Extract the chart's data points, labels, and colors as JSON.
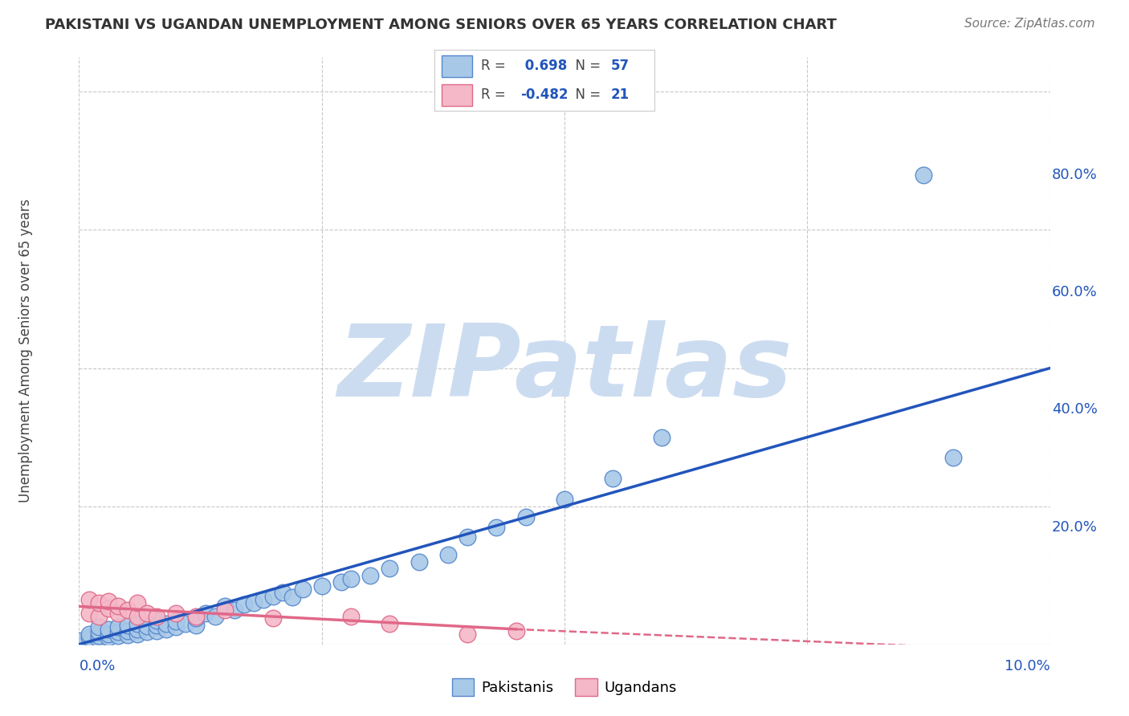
{
  "title": "PAKISTANI VS UGANDAN UNEMPLOYMENT AMONG SENIORS OVER 65 YEARS CORRELATION CHART",
  "source": "Source: ZipAtlas.com",
  "ylabel": "Unemployment Among Seniors over 65 years",
  "xlim": [
    0.0,
    0.1
  ],
  "ylim": [
    0.0,
    0.85
  ],
  "pakistani_color": "#A8C8E8",
  "pakistani_edge_color": "#5588CC",
  "ugandan_color": "#F4B8C8",
  "ugandan_edge_color": "#E06888",
  "trendline_pakistani_color": "#2255BB",
  "trendline_ugandan_color": "#E06888",
  "R_pakistani": 0.698,
  "N_pakistani": 57,
  "R_ugandan": -0.482,
  "N_ugandan": 21,
  "pakistani_x": [
    0.0,
    0.001,
    0.001,
    0.002,
    0.002,
    0.002,
    0.002,
    0.003,
    0.003,
    0.003,
    0.004,
    0.004,
    0.004,
    0.005,
    0.005,
    0.005,
    0.006,
    0.006,
    0.006,
    0.007,
    0.007,
    0.008,
    0.008,
    0.008,
    0.009,
    0.009,
    0.01,
    0.01,
    0.011,
    0.012,
    0.012,
    0.013,
    0.014,
    0.015,
    0.016,
    0.017,
    0.018,
    0.019,
    0.02,
    0.021,
    0.022,
    0.023,
    0.025,
    0.027,
    0.028,
    0.03,
    0.032,
    0.035,
    0.038,
    0.04,
    0.043,
    0.046,
    0.05,
    0.055,
    0.06,
    0.087,
    0.09
  ],
  "pakistani_y": [
    0.005,
    0.01,
    0.015,
    0.008,
    0.012,
    0.018,
    0.025,
    0.01,
    0.015,
    0.022,
    0.012,
    0.018,
    0.025,
    0.014,
    0.02,
    0.028,
    0.015,
    0.022,
    0.03,
    0.018,
    0.026,
    0.02,
    0.028,
    0.035,
    0.022,
    0.03,
    0.025,
    0.033,
    0.03,
    0.028,
    0.038,
    0.045,
    0.04,
    0.055,
    0.05,
    0.058,
    0.06,
    0.065,
    0.07,
    0.075,
    0.068,
    0.08,
    0.085,
    0.09,
    0.095,
    0.1,
    0.11,
    0.12,
    0.13,
    0.155,
    0.17,
    0.185,
    0.21,
    0.24,
    0.3,
    0.68,
    0.27
  ],
  "ugandan_x": [
    0.001,
    0.001,
    0.002,
    0.002,
    0.003,
    0.003,
    0.004,
    0.004,
    0.005,
    0.006,
    0.006,
    0.007,
    0.008,
    0.01,
    0.012,
    0.015,
    0.02,
    0.028,
    0.032,
    0.04,
    0.045
  ],
  "ugandan_y": [
    0.045,
    0.065,
    0.04,
    0.06,
    0.052,
    0.062,
    0.045,
    0.055,
    0.05,
    0.04,
    0.06,
    0.045,
    0.04,
    0.045,
    0.04,
    0.05,
    0.038,
    0.04,
    0.03,
    0.015,
    0.02
  ],
  "background_color": "#ffffff",
  "grid_color": "#c8c8c8",
  "watermark_text": "ZIPatlas",
  "watermark_color": "#ccdcf0"
}
